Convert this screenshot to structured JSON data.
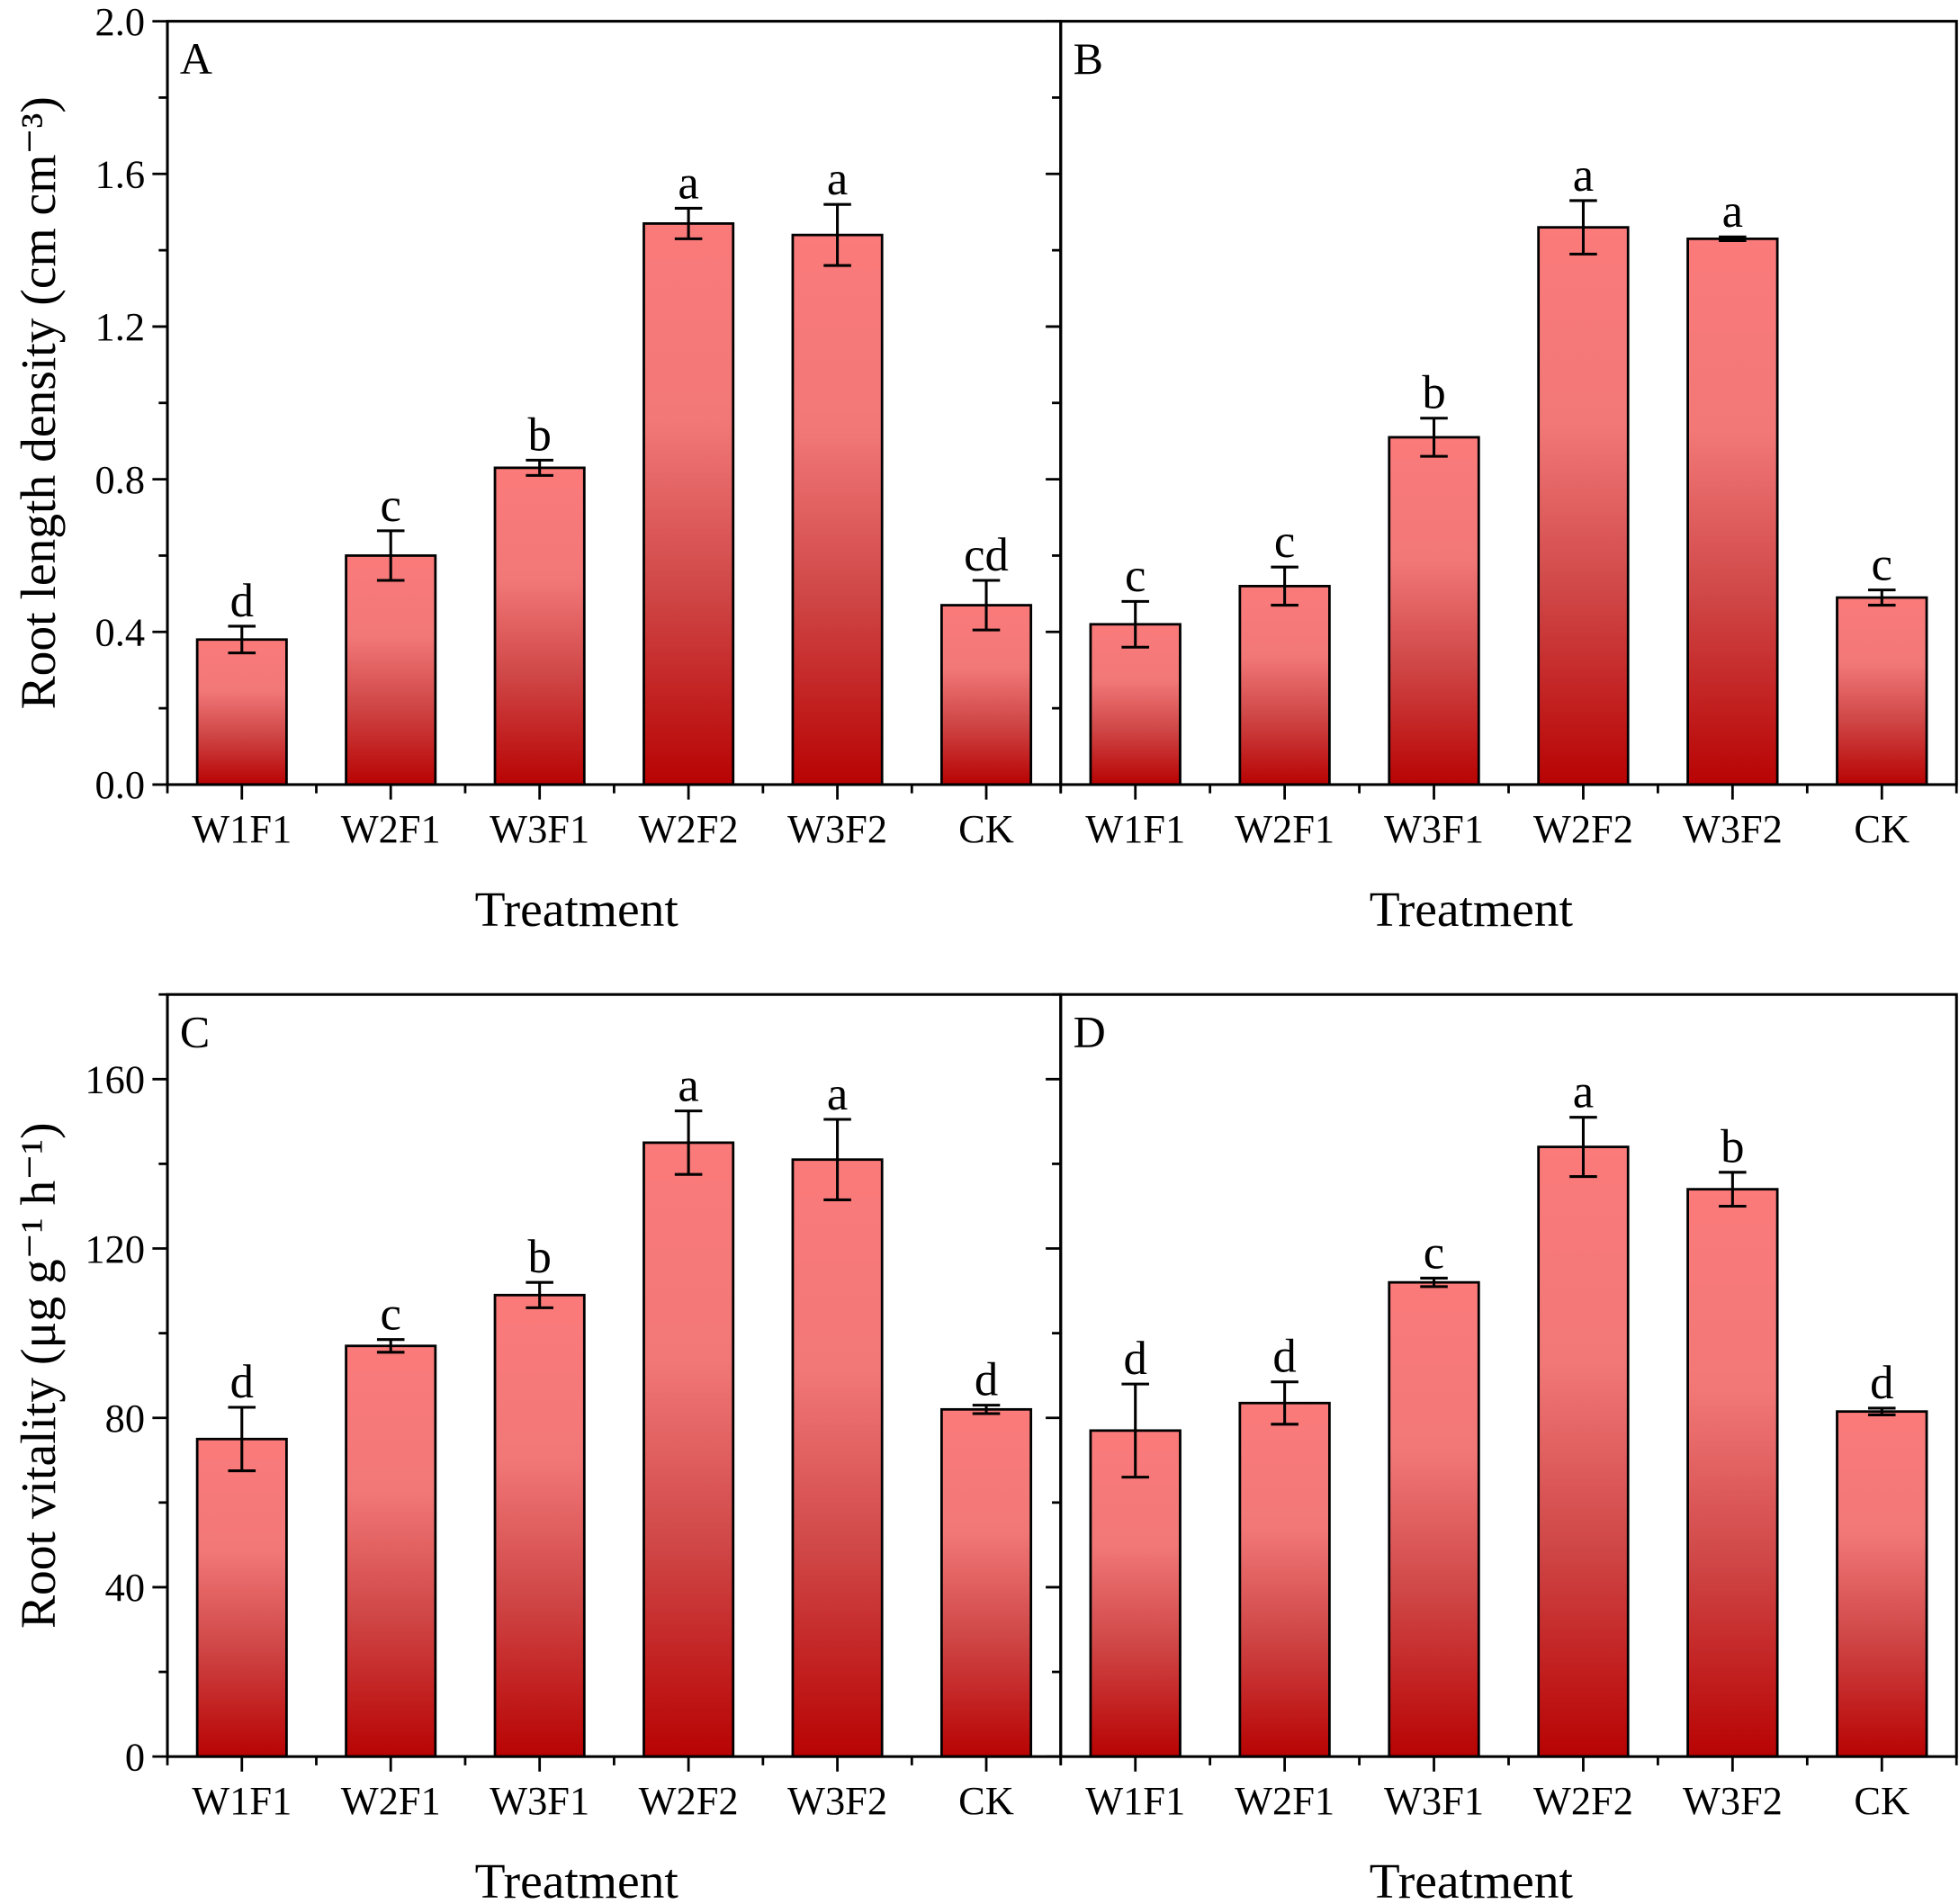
{
  "chart_data": [
    {
      "type": "bar",
      "panel_label": "A",
      "categories": [
        "W1F1",
        "W2F1",
        "W3F1",
        "W2F2",
        "W3F2",
        "CK"
      ],
      "values": [
        0.38,
        0.6,
        0.83,
        1.47,
        1.44,
        0.47
      ],
      "errors": [
        0.035,
        0.065,
        0.02,
        0.04,
        0.08,
        0.065
      ],
      "letters": [
        "d",
        "c",
        "b",
        "a",
        "a",
        "cd"
      ],
      "xlabel": "Treatment",
      "ylabel": "Root length density (cm cm⁻³)",
      "ylim": [
        0,
        2.0
      ],
      "yticks": [
        "0.0",
        "0.4",
        "0.8",
        "1.2",
        "1.6",
        "2.0"
      ],
      "ytick_step": 0.4,
      "show_ytick_labels": true
    },
    {
      "type": "bar",
      "panel_label": "B",
      "categories": [
        "W1F1",
        "W2F1",
        "W3F1",
        "W2F2",
        "W3F2",
        "CK"
      ],
      "values": [
        0.42,
        0.52,
        0.91,
        1.46,
        1.43,
        0.49
      ],
      "errors": [
        0.06,
        0.05,
        0.05,
        0.07,
        0.005,
        0.02
      ],
      "letters": [
        "c",
        "c",
        "b",
        "a",
        "a",
        "c"
      ],
      "xlabel": "Treatment",
      "ylabel": "",
      "ylim": [
        0,
        2.0
      ],
      "yticks": [],
      "ytick_step": 0.4,
      "show_ytick_labels": false
    },
    {
      "type": "bar",
      "panel_label": "C",
      "categories": [
        "W1F1",
        "W2F1",
        "W3F1",
        "W2F2",
        "W3F2",
        "CK"
      ],
      "values": [
        75,
        97,
        109,
        145,
        141,
        82
      ],
      "errors": [
        7.5,
        1.5,
        3,
        7.5,
        9.5,
        1
      ],
      "letters": [
        "d",
        "c",
        "b",
        "a",
        "a",
        "d"
      ],
      "xlabel": "Treatment",
      "ylabel": "Root vitality (μg g⁻¹ h⁻¹)",
      "ylim": [
        0,
        180
      ],
      "yticks": [
        "0",
        "40",
        "80",
        "120",
        "160"
      ],
      "ytick_step": 40,
      "show_ytick_labels": true
    },
    {
      "type": "bar",
      "panel_label": "D",
      "categories": [
        "W1F1",
        "W2F1",
        "W3F1",
        "W2F2",
        "W3F2",
        "CK"
      ],
      "values": [
        77,
        83.5,
        112,
        144,
        134,
        81.5
      ],
      "errors": [
        11,
        5,
        1,
        7,
        4,
        0.8
      ],
      "letters": [
        "d",
        "d",
        "c",
        "a",
        "b",
        "d"
      ],
      "xlabel": "Treatment",
      "ylabel": "",
      "ylim": [
        0,
        180
      ],
      "yticks": [],
      "ytick_step": 40,
      "show_ytick_labels": false
    }
  ],
  "colors": {
    "bar_top": "#ff8080",
    "bar_mid": "#d45050",
    "bar_bottom": "#b80000",
    "axis": "#000000"
  }
}
